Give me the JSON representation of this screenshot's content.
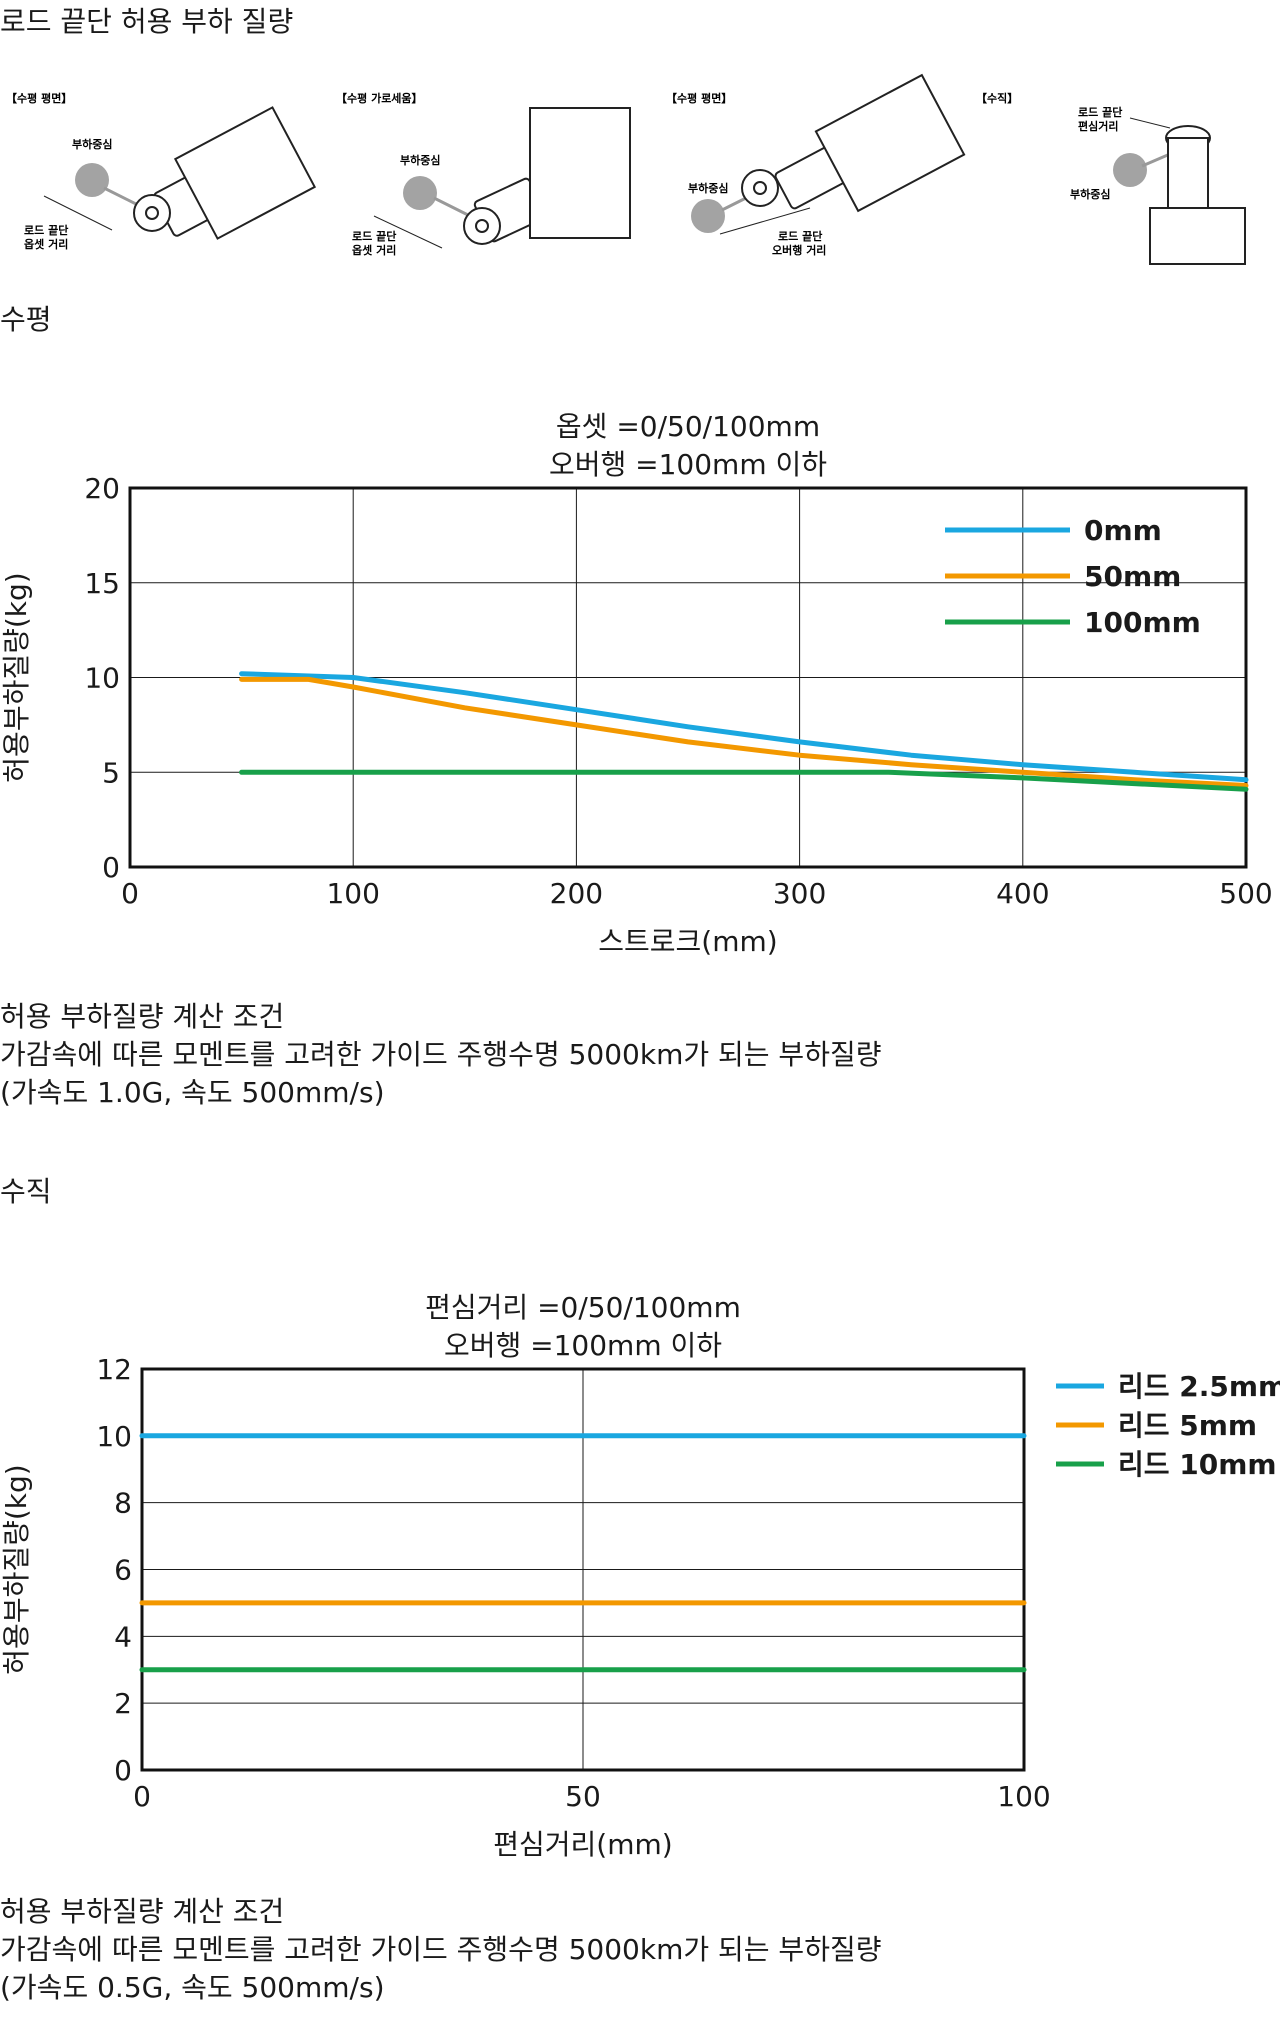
{
  "page_title": "로드 끝단 허용 부하 질량",
  "diagrams": [
    {
      "title": "【수평 평면】",
      "labels": [
        "부하중심",
        "로드 끝단",
        "옵셋 거리"
      ]
    },
    {
      "title": "【수평 가로세움】",
      "labels": [
        "부하중심",
        "로드 끝단",
        "옵셋 거리"
      ]
    },
    {
      "title": "【수평 평면】",
      "labels": [
        "부하중심",
        "로드 끝단",
        "오버행 거리"
      ]
    },
    {
      "title": "【수직】",
      "labels": [
        "로드 끝단",
        "편심거리",
        "부하중심"
      ]
    }
  ],
  "sections": [
    {
      "heading": "수평",
      "notes": [
        "허용 부하질량 계산 조건",
        "가감속에 따른 모멘트를 고려한 가이드 주행수명 5000km가 되는 부하질량",
        "(가속도 1.0G, 속도 500mm/s)"
      ]
    },
    {
      "heading": "수직",
      "notes": [
        "허용 부하질량 계산 조건",
        "가감속에 따른 모멘트를 고려한 가이드 주행수명 5000km가 되는 부하질량",
        "(가속도 0.5G, 속도 500mm/s)"
      ]
    }
  ],
  "colors": {
    "blue": "#1aa7e0",
    "orange": "#f39800",
    "green": "#18a04a"
  },
  "chart_data": [
    {
      "type": "line",
      "title": "옵셋 =0/50/100mm",
      "subtitle": "오버행 =100mm 이하",
      "xlabel": "스트로크(mm)",
      "ylabel": "허용부하질량(kg)",
      "xlim": [
        0,
        500
      ],
      "ylim": [
        0,
        20
      ],
      "xticks": [
        "0",
        "100",
        "200",
        "300",
        "400",
        "500"
      ],
      "yticks": [
        "0",
        "5",
        "10",
        "15",
        "20"
      ],
      "grid": true,
      "legend": "top-right",
      "series": [
        {
          "name": "0mm",
          "color": "#1aa7e0",
          "x": [
            50,
            100,
            150,
            200,
            250,
            300,
            350,
            400,
            450,
            500
          ],
          "y": [
            10.2,
            10.0,
            9.2,
            8.3,
            7.4,
            6.6,
            5.9,
            5.4,
            5.0,
            4.6
          ]
        },
        {
          "name": "50mm",
          "color": "#f39800",
          "x": [
            50,
            80,
            100,
            150,
            200,
            250,
            300,
            350,
            400,
            450,
            500
          ],
          "y": [
            9.9,
            9.9,
            9.5,
            8.4,
            7.5,
            6.6,
            5.9,
            5.4,
            5.0,
            4.6,
            4.3
          ]
        },
        {
          "name": "100mm",
          "color": "#18a04a",
          "x": [
            50,
            100,
            200,
            300,
            340,
            400,
            450,
            500
          ],
          "y": [
            5.0,
            5.0,
            5.0,
            5.0,
            5.0,
            4.7,
            4.4,
            4.1
          ]
        }
      ]
    },
    {
      "type": "line",
      "title": "편심거리 =0/50/100mm",
      "subtitle": "오버행 =100mm 이하",
      "xlabel": "편심거리(mm)",
      "ylabel": "허용부하질량(kg)",
      "xlim": [
        0,
        100
      ],
      "ylim": [
        0,
        12
      ],
      "xticks": [
        "0",
        "50",
        "100"
      ],
      "yticks": [
        "0",
        "2",
        "4",
        "6",
        "8",
        "10",
        "12"
      ],
      "grid": true,
      "legend": "right",
      "series": [
        {
          "name": "리드 2.5mm",
          "color": "#1aa7e0",
          "x": [
            0,
            100
          ],
          "y": [
            10,
            10
          ]
        },
        {
          "name": "리드 5mm",
          "color": "#f39800",
          "x": [
            0,
            100
          ],
          "y": [
            5,
            5
          ]
        },
        {
          "name": "리드 10mm",
          "color": "#18a04a",
          "x": [
            0,
            100
          ],
          "y": [
            3,
            3
          ]
        }
      ]
    }
  ]
}
